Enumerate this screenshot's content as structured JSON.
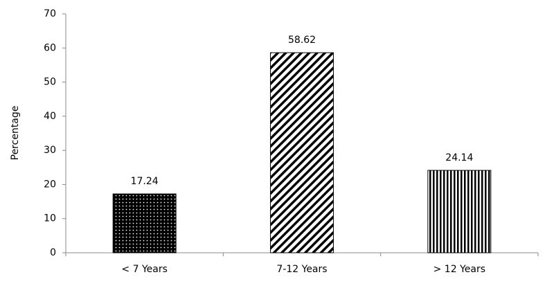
{
  "chart_data": {
    "type": "bar",
    "y_label": "Percentage",
    "categories": [
      "< 7 Years",
      "7-12 Years",
      "> 12 Years"
    ],
    "values": [
      17.24,
      58.62,
      24.14
    ],
    "color": "#000000",
    "patterns": [
      "dots",
      "diagonal",
      "vertical"
    ],
    "ylim": [
      0,
      70
    ],
    "yticks": [
      0,
      10,
      20,
      30,
      40,
      50,
      60,
      70
    ],
    "grid": false
  }
}
